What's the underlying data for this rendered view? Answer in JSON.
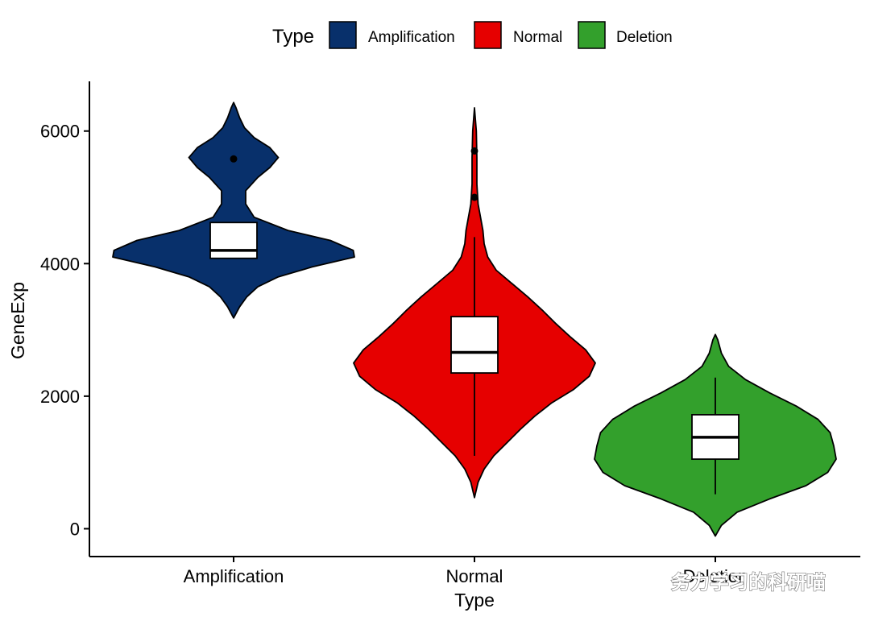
{
  "chart_data": {
    "type": "violin",
    "xlabel": "Type",
    "ylabel": "GeneExp",
    "ylim": [
      -420,
      6750
    ],
    "y_ticks": [
      0,
      2000,
      4000,
      6000
    ],
    "categories": [
      "Amplification",
      "Normal",
      "Deletion"
    ],
    "legend": {
      "title": "Type",
      "placement": "top",
      "entries": [
        "Amplification",
        "Normal",
        "Deletion"
      ]
    },
    "colors": {
      "Amplification": "#08306b",
      "Normal": "#e60000",
      "Deletion": "#33a02c"
    },
    "series": [
      {
        "name": "Amplification",
        "color": "#08306b",
        "box": {
          "q1": 4080,
          "median": 4200,
          "q3": 4620,
          "whisker_low": 4080,
          "whisker_high": 4620
        },
        "outliers": [
          5580
        ],
        "density": [
          [
            3180,
            0
          ],
          [
            3350,
            0.05
          ],
          [
            3500,
            0.11
          ],
          [
            3650,
            0.2
          ],
          [
            3800,
            0.37
          ],
          [
            3950,
            0.65
          ],
          [
            4100,
            1.0
          ],
          [
            4200,
            0.99
          ],
          [
            4350,
            0.8
          ],
          [
            4500,
            0.45
          ],
          [
            4700,
            0.17
          ],
          [
            4900,
            0.1
          ],
          [
            5100,
            0.1
          ],
          [
            5300,
            0.2
          ],
          [
            5450,
            0.3
          ],
          [
            5600,
            0.37
          ],
          [
            5750,
            0.3
          ],
          [
            5900,
            0.17
          ],
          [
            6050,
            0.09
          ],
          [
            6200,
            0.05
          ],
          [
            6350,
            0.02
          ],
          [
            6430,
            0
          ]
        ]
      },
      {
        "name": "Normal",
        "color": "#e60000",
        "box": {
          "q1": 2350,
          "median": 2660,
          "q3": 3200,
          "whisker_low": 1100,
          "whisker_high": 4400
        },
        "outliers": [
          5700,
          5000
        ],
        "density": [
          [
            470,
            0
          ],
          [
            700,
            0.03
          ],
          [
            900,
            0.08
          ],
          [
            1100,
            0.16
          ],
          [
            1300,
            0.27
          ],
          [
            1500,
            0.38
          ],
          [
            1700,
            0.5
          ],
          [
            1900,
            0.64
          ],
          [
            2100,
            0.82
          ],
          [
            2300,
            0.95
          ],
          [
            2500,
            1.0
          ],
          [
            2700,
            0.92
          ],
          [
            2900,
            0.79
          ],
          [
            3100,
            0.67
          ],
          [
            3300,
            0.56
          ],
          [
            3500,
            0.44
          ],
          [
            3700,
            0.31
          ],
          [
            3900,
            0.18
          ],
          [
            4100,
            0.11
          ],
          [
            4300,
            0.08
          ],
          [
            4500,
            0.07
          ],
          [
            4700,
            0.05
          ],
          [
            4900,
            0.03
          ],
          [
            5200,
            0.02
          ],
          [
            5600,
            0.02
          ],
          [
            6000,
            0.015
          ],
          [
            6350,
            0
          ]
        ]
      },
      {
        "name": "Deletion",
        "color": "#33a02c",
        "box": {
          "q1": 1050,
          "median": 1380,
          "q3": 1720,
          "whisker_low": 520,
          "whisker_high": 2280
        },
        "outliers": [],
        "density": [
          [
            -110,
            0
          ],
          [
            50,
            0.05
          ],
          [
            250,
            0.18
          ],
          [
            450,
            0.45
          ],
          [
            650,
            0.75
          ],
          [
            850,
            0.93
          ],
          [
            1050,
            1.0
          ],
          [
            1250,
            0.98
          ],
          [
            1450,
            0.95
          ],
          [
            1650,
            0.85
          ],
          [
            1850,
            0.67
          ],
          [
            2050,
            0.45
          ],
          [
            2250,
            0.25
          ],
          [
            2450,
            0.11
          ],
          [
            2650,
            0.05
          ],
          [
            2850,
            0.02
          ],
          [
            2930,
            0
          ]
        ]
      }
    ]
  },
  "watermark": "务力学习的科研喵"
}
